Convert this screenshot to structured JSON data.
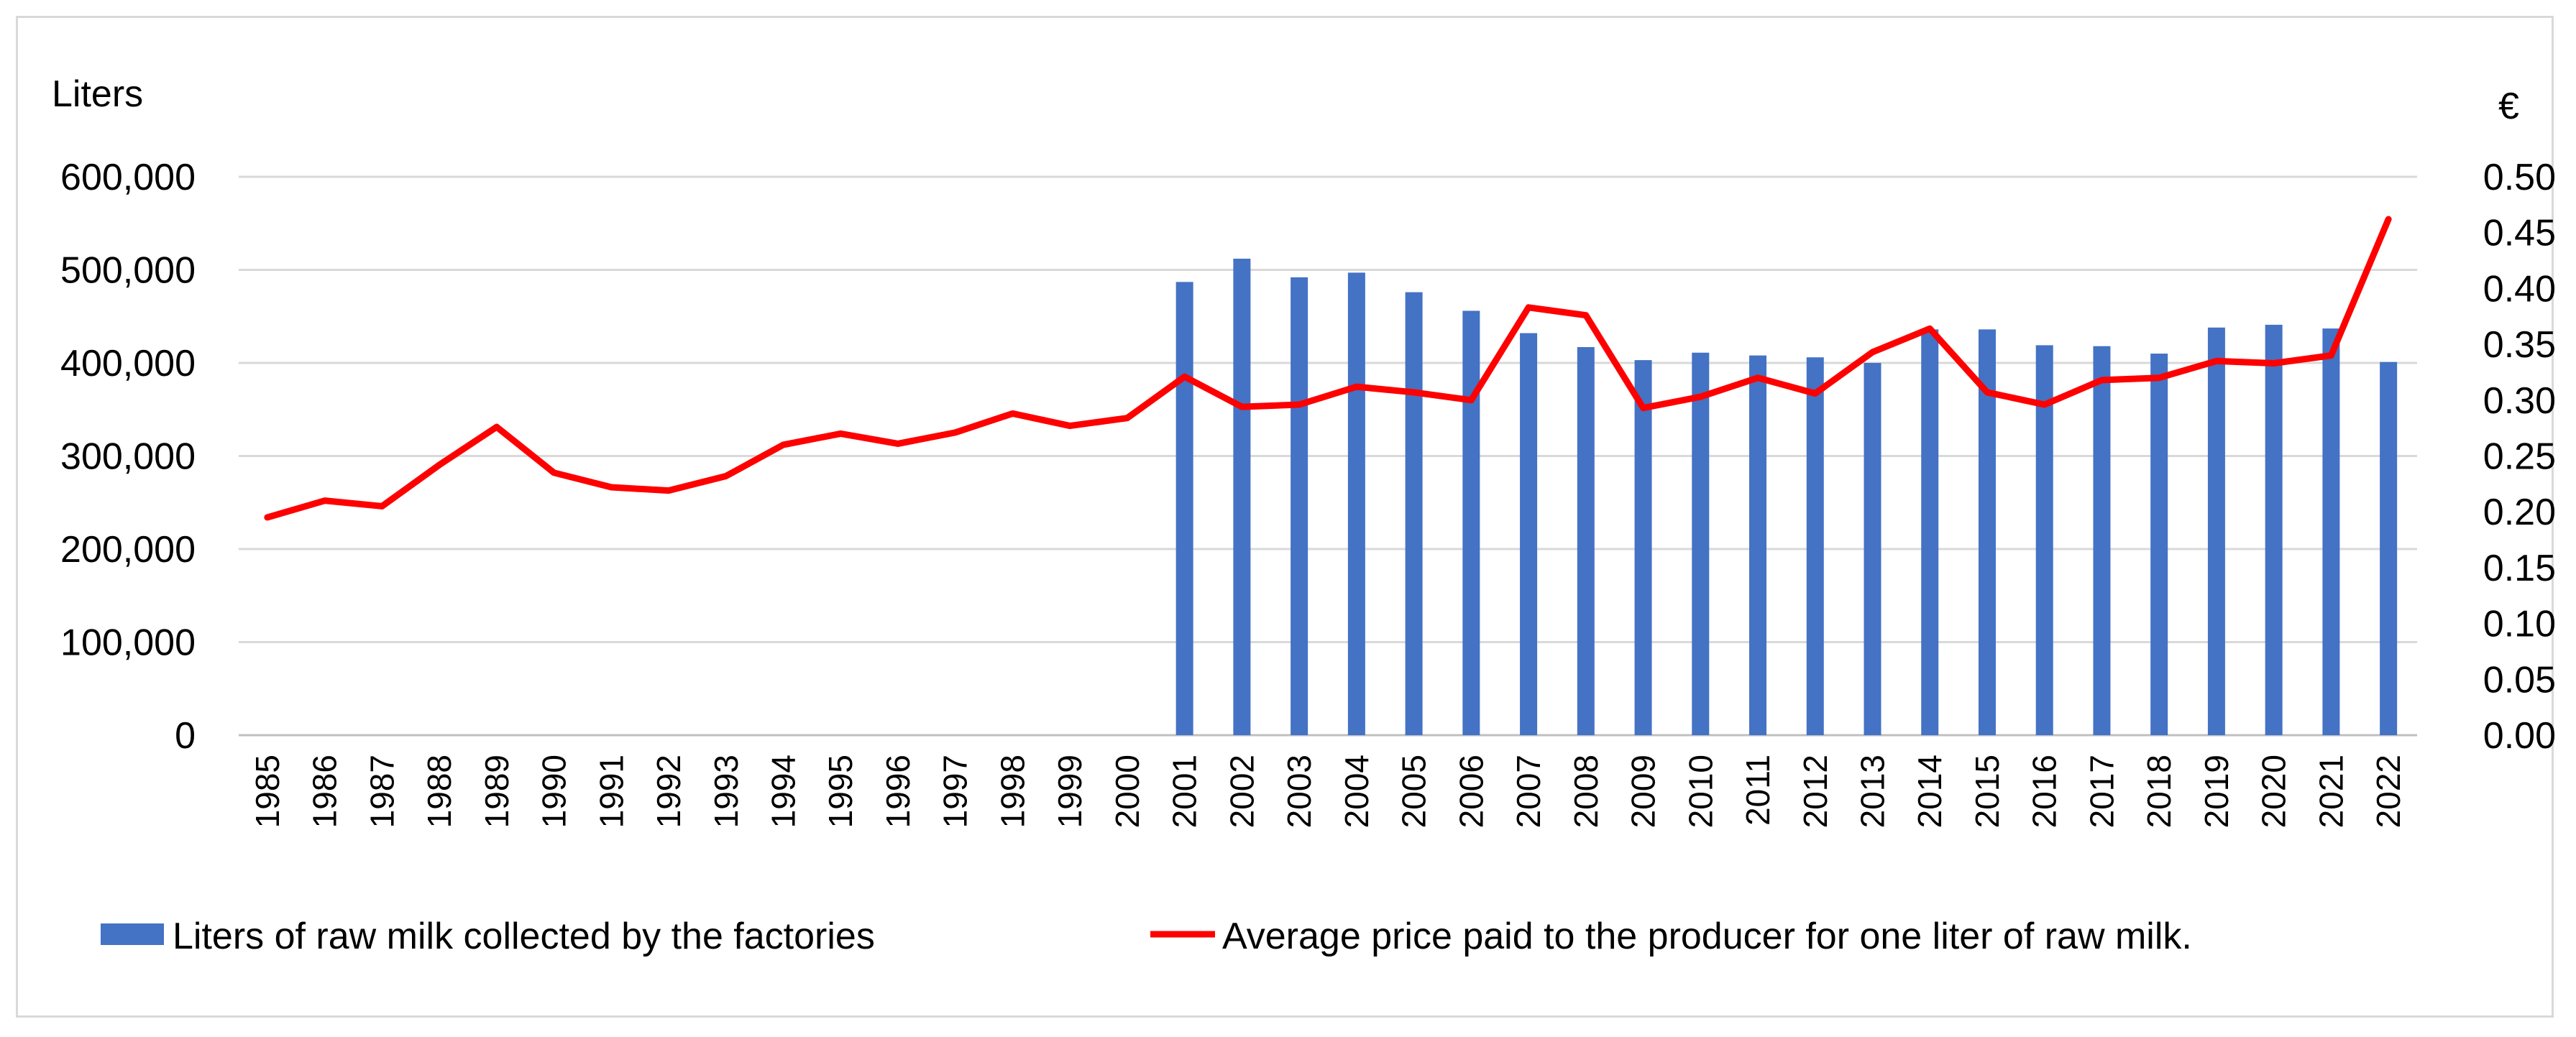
{
  "chart_data": {
    "type": "bar+line",
    "title": "",
    "left_axis": {
      "title": "Liters",
      "ylim": [
        0,
        600000
      ],
      "ticks": [
        0,
        100000,
        200000,
        300000,
        400000,
        500000,
        600000
      ],
      "tick_labels": [
        "0",
        "100,000",
        "200,000",
        "300,000",
        "400,000",
        "500,000",
        "600,000"
      ]
    },
    "right_axis": {
      "title": "€",
      "ylim": [
        0,
        0.5
      ],
      "ticks": [
        0,
        0.05,
        0.1,
        0.15,
        0.2,
        0.25,
        0.3,
        0.35,
        0.4,
        0.45,
        0.5
      ],
      "tick_labels": [
        "0.00",
        "0.05",
        "0.10",
        "0.15",
        "0.20",
        "0.25",
        "0.30",
        "0.35",
        "0.40",
        "0.45",
        "0.50"
      ]
    },
    "categories": [
      "1985",
      "1986",
      "1987",
      "1988",
      "1989",
      "1990",
      "1991",
      "1992",
      "1993",
      "1994",
      "1995",
      "1996",
      "1997",
      "1998",
      "1999",
      "2000",
      "2001",
      "2002",
      "2003",
      "2004",
      "2005",
      "2006",
      "2007",
      "2008",
      "2009",
      "2010",
      "2011",
      "2012",
      "2013",
      "2014",
      "2015",
      "2016",
      "2017",
      "2018",
      "2019",
      "2020",
      "2021",
      "2022"
    ],
    "grid": true,
    "legend_position": "bottom",
    "series": [
      {
        "name": "Liters of raw milk collected by the factories",
        "type": "bar",
        "axis": "left",
        "color": "#4472c4",
        "values": [
          null,
          null,
          null,
          null,
          null,
          null,
          null,
          null,
          null,
          null,
          null,
          null,
          null,
          null,
          null,
          null,
          487000,
          512000,
          492000,
          497000,
          476000,
          456000,
          432000,
          417000,
          403000,
          411000,
          408000,
          406000,
          400000,
          436000,
          436000,
          419000,
          418000,
          410000,
          438000,
          441000,
          437000,
          401000
        ]
      },
      {
        "name": "Average price paid to the producer for one liter of raw milk.",
        "type": "line",
        "axis": "right",
        "color": "#ff0000",
        "values": [
          0.195,
          0.21,
          0.205,
          0.242,
          0.276,
          0.235,
          0.222,
          0.219,
          0.232,
          0.26,
          0.27,
          0.261,
          0.271,
          0.288,
          0.277,
          0.284,
          0.321,
          0.294,
          0.296,
          0.312,
          0.307,
          0.3,
          0.383,
          0.376,
          0.293,
          0.303,
          0.32,
          0.306,
          0.343,
          0.364,
          0.307,
          0.296,
          0.318,
          0.32,
          0.335,
          0.333,
          0.34,
          0.462
        ]
      }
    ]
  }
}
